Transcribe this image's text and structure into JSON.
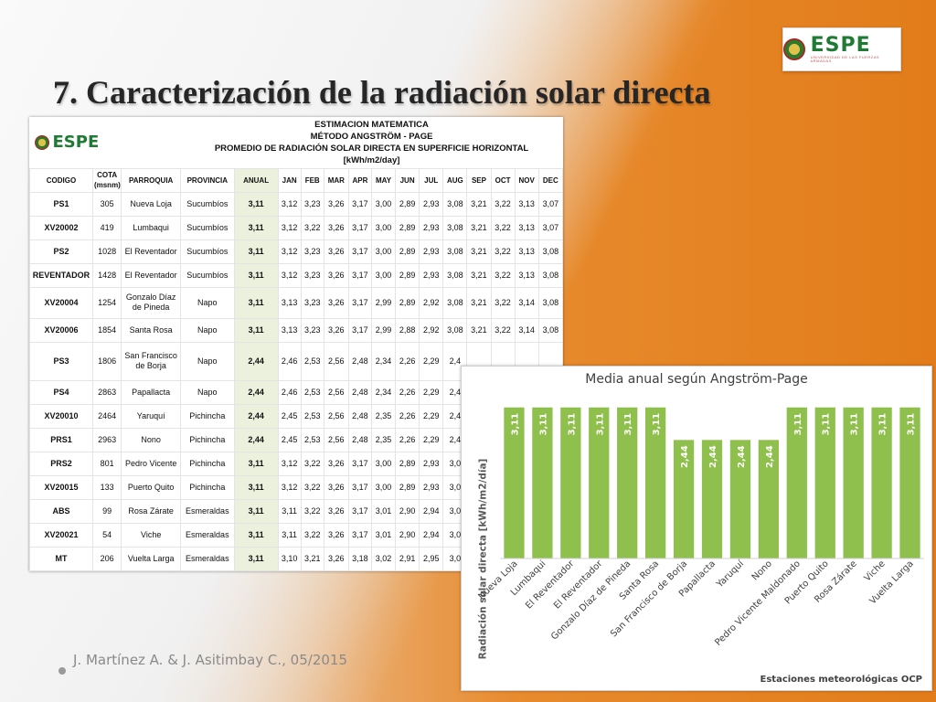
{
  "title": "7. Caracterización de la radiación solar directa",
  "logo": {
    "word": "ESPE",
    "sub": "UNIVERSIDAD DE LAS FUERZAS ARMADAS"
  },
  "footer": "J. Martínez A. & J. Asitimbay C., 05/2015",
  "table": {
    "header_lines": [
      "ESTIMACION MATEMATICA",
      "MÉTODO ANGSTRÖM - PAGE",
      "PROMEDIO DE RADIACIÓN SOLAR DIRECTA EN SUPERFICIE HORIZONTAL",
      "[kWh/m2/day]"
    ],
    "columns": [
      "CODIGO",
      "COTA (msnm)",
      "PARROQUIA",
      "PROVINCIA",
      "ANUAL",
      "JAN",
      "FEB",
      "MAR",
      "APR",
      "MAY",
      "JUN",
      "JUL",
      "AUG",
      "SEP",
      "OCT",
      "NOV",
      "DEC"
    ],
    "rows": [
      [
        "PS1",
        "305",
        "Nueva Loja",
        "Sucumbíos",
        "3,11",
        "3,12",
        "3,23",
        "3,26",
        "3,17",
        "3,00",
        "2,89",
        "2,93",
        "3,08",
        "3,21",
        "3,22",
        "3,13",
        "3,07"
      ],
      [
        "XV20002",
        "419",
        "Lumbaqui",
        "Sucumbíos",
        "3,11",
        "3,12",
        "3,22",
        "3,26",
        "3,17",
        "3,00",
        "2,89",
        "2,93",
        "3,08",
        "3,21",
        "3,22",
        "3,13",
        "3,07"
      ],
      [
        "PS2",
        "1028",
        "El Reventador",
        "Sucumbíos",
        "3,11",
        "3,12",
        "3,23",
        "3,26",
        "3,17",
        "3,00",
        "2,89",
        "2,93",
        "3,08",
        "3,21",
        "3,22",
        "3,13",
        "3,08"
      ],
      [
        "REVENTADOR",
        "1428",
        "El Reventador",
        "Sucumbíos",
        "3,11",
        "3,12",
        "3,23",
        "3,26",
        "3,17",
        "3,00",
        "2,89",
        "2,93",
        "3,08",
        "3,21",
        "3,22",
        "3,13",
        "3,08"
      ],
      [
        "XV20004",
        "1254",
        "Gonzalo Díaz de Pineda",
        "Napo",
        "3,11",
        "3,13",
        "3,23",
        "3,26",
        "3,17",
        "2,99",
        "2,89",
        "2,92",
        "3,08",
        "3,21",
        "3,22",
        "3,14",
        "3,08"
      ],
      [
        "XV20006",
        "1854",
        "Santa Rosa",
        "Napo",
        "3,11",
        "3,13",
        "3,23",
        "3,26",
        "3,17",
        "2,99",
        "2,88",
        "2,92",
        "3,08",
        "3,21",
        "3,22",
        "3,14",
        "3,08"
      ],
      [
        "PS3",
        "1806",
        "San Francisco de Borja",
        "Napo",
        "2,44",
        "2,46",
        "2,53",
        "2,56",
        "2,48",
        "2,34",
        "2,26",
        "2,29",
        "2,4",
        "",
        "",
        "",
        ""
      ],
      [
        "PS4",
        "2863",
        "Papallacta",
        "Napo",
        "2,44",
        "2,46",
        "2,53",
        "2,56",
        "2,48",
        "2,34",
        "2,26",
        "2,29",
        "2,4",
        "",
        "",
        "",
        ""
      ],
      [
        "XV20010",
        "2464",
        "Yaruquí",
        "Pichincha",
        "2,44",
        "2,45",
        "2,53",
        "2,56",
        "2,48",
        "2,35",
        "2,26",
        "2,29",
        "2,4",
        "",
        "",
        "",
        ""
      ],
      [
        "PRS1",
        "2963",
        "Nono",
        "Pichincha",
        "2,44",
        "2,45",
        "2,53",
        "2,56",
        "2,48",
        "2,35",
        "2,26",
        "2,29",
        "2,4",
        "",
        "",
        "",
        ""
      ],
      [
        "PRS2",
        "801",
        "Pedro Vicente",
        "Pichincha",
        "3,11",
        "3,12",
        "3,22",
        "3,26",
        "3,17",
        "3,00",
        "2,89",
        "2,93",
        "3,0",
        "",
        "",
        "",
        ""
      ],
      [
        "XV20015",
        "133",
        "Puerto Quito",
        "Pichincha",
        "3,11",
        "3,12",
        "3,22",
        "3,26",
        "3,17",
        "3,00",
        "2,89",
        "2,93",
        "3,0",
        "",
        "",
        "",
        ""
      ],
      [
        "ABS",
        "99",
        "Rosa Zárate",
        "Esmeraldas",
        "3,11",
        "3,11",
        "3,22",
        "3,26",
        "3,17",
        "3,01",
        "2,90",
        "2,94",
        "3,0",
        "",
        "",
        "",
        ""
      ],
      [
        "XV20021",
        "54",
        "Viche",
        "Esmeraldas",
        "3,11",
        "3,11",
        "3,22",
        "3,26",
        "3,17",
        "3,01",
        "2,90",
        "2,94",
        "3,0",
        "",
        "",
        "",
        ""
      ],
      [
        "MT",
        "206",
        "Vuelta Larga",
        "Esmeraldas",
        "3,11",
        "3,10",
        "3,21",
        "3,26",
        "3,18",
        "3,02",
        "2,91",
        "2,95",
        "3,0",
        "",
        "",
        "",
        ""
      ]
    ]
  },
  "chart_data": {
    "type": "bar",
    "title": "Media anual según Angström-Page",
    "ylabel": "Radiación solar directa [kWh/m2/día]",
    "xlabel": "Estaciones meteorológicas OCP",
    "categories": [
      "Nueva Loja",
      "Lumbaqui",
      "El Reventador",
      "El Reventador",
      "Gonzalo Díaz de Pineda",
      "Santa Rosa",
      "San Francisco de Borja",
      "Papallacta",
      "Yaruquí",
      "Nono",
      "Pedro Vicente Maldonado",
      "Puerto Quito",
      "Rosa Zárate",
      "Viche",
      "Vuelta Larga"
    ],
    "values": [
      3.11,
      3.11,
      3.11,
      3.11,
      3.11,
      3.11,
      2.44,
      2.44,
      2.44,
      2.44,
      3.11,
      3.11,
      3.11,
      3.11,
      3.11
    ],
    "value_labels": [
      "3,11",
      "3,11",
      "3,11",
      "3,11",
      "3,11",
      "3,11",
      "2,44",
      "2,44",
      "2,44",
      "2,44",
      "3,11",
      "3,11",
      "3,11",
      "3,11",
      "3,11"
    ],
    "ylim": [
      0,
      3.5
    ],
    "bar_color": "#8fbf4c",
    "grid": false
  }
}
